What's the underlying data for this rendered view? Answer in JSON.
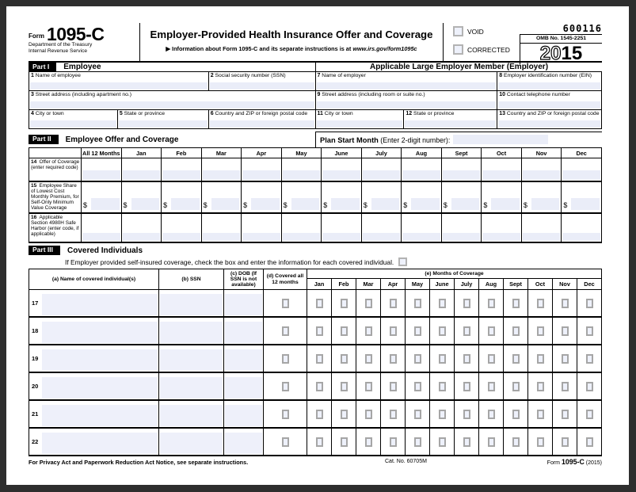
{
  "header": {
    "form_label": "Form",
    "form_number": "1095-C",
    "dept_line1": "Department of the Treasury",
    "dept_line2": "Internal Revenue Service",
    "title": "Employer-Provided Health Insurance Offer and Coverage",
    "subtitle_prefix": "▶ Information about Form 1095-C and its separate instructions is at ",
    "subtitle_url": "www.irs.gov/form1095c",
    "void_label": "VOID",
    "corrected_label": "CORRECTED",
    "serial": "600116",
    "omb": "OMB No. 1545-2251",
    "year_outline": "20",
    "year_bold": "15"
  },
  "part1": {
    "tag": "Part I",
    "title": "Employee",
    "employer_header": "Applicable Large Employer Member (Employer)",
    "fields": [
      {
        "num": "1",
        "label": "Name of employee"
      },
      {
        "num": "2",
        "label": "Social security number (SSN)"
      },
      {
        "num": "3",
        "label": "Street address (including apartment no.)"
      },
      {
        "num": "4",
        "label": "City or town"
      },
      {
        "num": "5",
        "label": "State or province"
      },
      {
        "num": "6",
        "label": "Country and ZIP or foreign postal code"
      },
      {
        "num": "7",
        "label": "Name of employer"
      },
      {
        "num": "8",
        "label": "Employer identification number (EIN)"
      },
      {
        "num": "9",
        "label": "Street address (including room or suite no.)"
      },
      {
        "num": "10",
        "label": "Contact telephone number"
      },
      {
        "num": "11",
        "label": "City or town"
      },
      {
        "num": "12",
        "label": "State or province"
      },
      {
        "num": "13",
        "label": "Country and ZIP or foreign postal code"
      }
    ]
  },
  "part2": {
    "tag": "Part II",
    "title": "Employee Offer and Coverage",
    "plan_start_label": "Plan Start Month",
    "plan_start_hint": " (Enter 2-digit number):",
    "columns": [
      "All 12 Months",
      "Jan",
      "Feb",
      "Mar",
      "Apr",
      "May",
      "June",
      "July",
      "Aug",
      "Sept",
      "Oct",
      "Nov",
      "Dec"
    ],
    "rows": [
      {
        "num": "14",
        "label": "Offer of Coverage (enter required code)",
        "type": "code"
      },
      {
        "num": "15",
        "label": "Employee Share of Lowest Cost Monthly Premium, for Self-Only Minimum Value Coverage",
        "type": "dollar",
        "currency": "$"
      },
      {
        "num": "16",
        "label": "Applicable Section 4980H Safe Harbor (enter code, if applicable)",
        "type": "code2"
      }
    ]
  },
  "part3": {
    "tag": "Part III",
    "title": "Covered Individuals",
    "instruction": "If Employer provided self-insured coverage, check the box and enter the information for each covered individual.",
    "columns": {
      "a": "(a) Name of covered individual(s)",
      "b": "(b) SSN",
      "c": "(c) DOB (If SSN is not available)",
      "d": "(d) Covered all 12 months",
      "e": "(e) Months of Coverage"
    },
    "months": [
      "Jan",
      "Feb",
      "Mar",
      "Apr",
      "May",
      "June",
      "July",
      "Aug",
      "Sept",
      "Oct",
      "Nov",
      "Dec"
    ],
    "row_numbers": [
      "17",
      "18",
      "19",
      "20",
      "21",
      "22"
    ]
  },
  "footer": {
    "privacy": "For Privacy Act and Paperwork Reduction Act Notice, see separate instructions.",
    "catalog": "Cat. No. 60705M",
    "form_ref_prefix": "Form ",
    "form_ref_number": "1095-C",
    "form_ref_suffix": " (2015)"
  }
}
